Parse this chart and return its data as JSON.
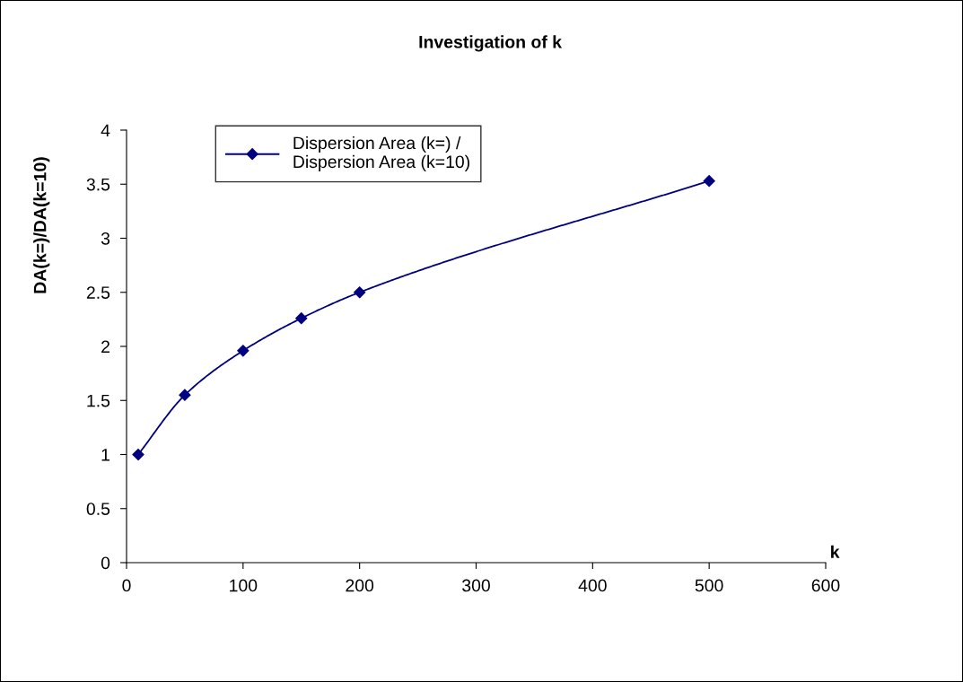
{
  "chart_data": {
    "type": "line",
    "title": "Investigation of k",
    "xlabel": "k",
    "ylabel": "DA(k=)/DA(k=10)",
    "x": [
      10,
      50,
      100,
      150,
      200,
      500
    ],
    "series": [
      {
        "name": "Dispersion Area (k=) /\nDispersion Area (k=10)",
        "color": "#000080",
        "values": [
          1.0,
          1.55,
          1.96,
          2.26,
          2.5,
          3.53
        ]
      }
    ],
    "xlim": [
      0,
      600
    ],
    "xticks": [
      0,
      100,
      200,
      300,
      400,
      500,
      600
    ],
    "ylim": [
      0,
      4
    ],
    "yticks": [
      0,
      0.5,
      1,
      1.5,
      2,
      2.5,
      3,
      3.5,
      4
    ],
    "marker": "diamond",
    "line_style": "solid",
    "legend": "top left",
    "grid": false
  }
}
